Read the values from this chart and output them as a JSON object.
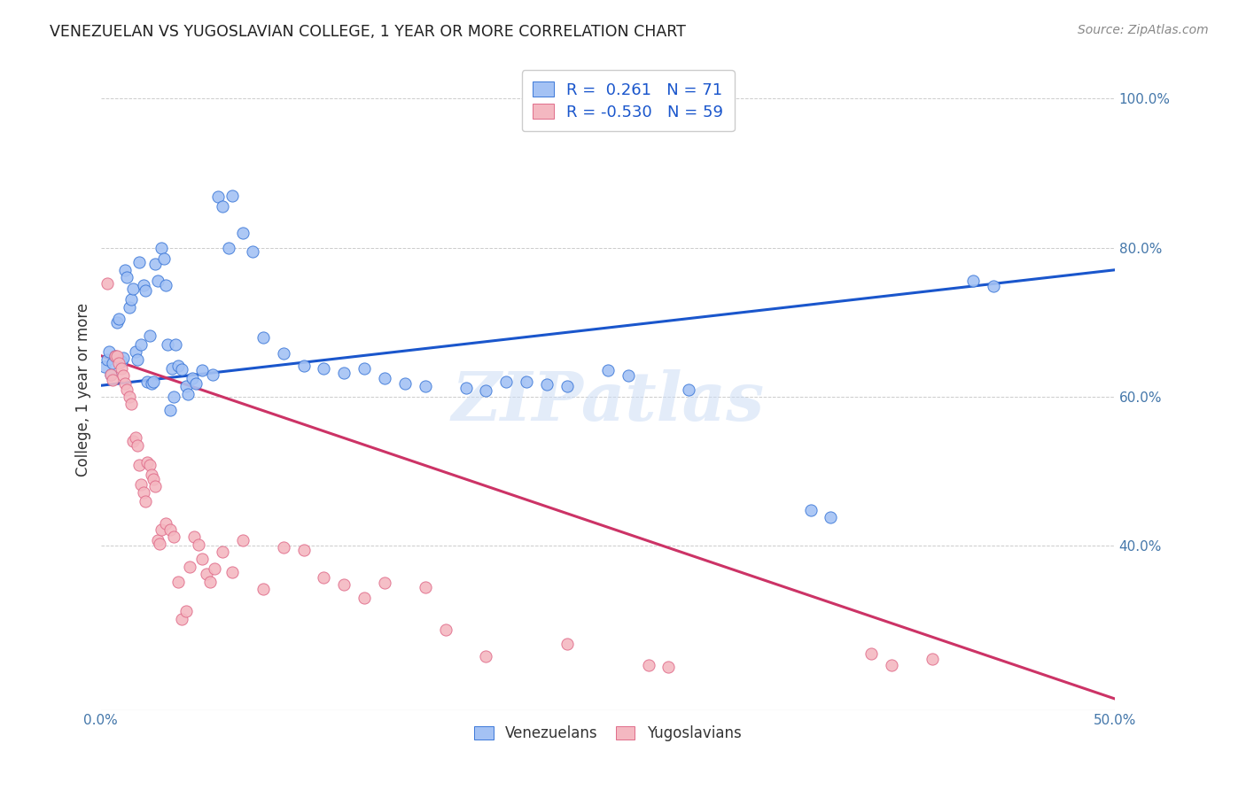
{
  "title": "VENEZUELAN VS YUGOSLAVIAN COLLEGE, 1 YEAR OR MORE CORRELATION CHART",
  "source": "Source: ZipAtlas.com",
  "xmin": 0.0,
  "xmax": 0.5,
  "ymin": 0.18,
  "ymax": 1.04,
  "watermark_text": "ZIPatlas",
  "legend_R_blue": "0.261",
  "legend_N_blue": "71",
  "legend_R_pink": "-0.530",
  "legend_N_pink": "59",
  "blue_fill": "#a4c2f4",
  "pink_fill": "#f4b8c1",
  "blue_edge": "#3c78d8",
  "pink_edge": "#e06c8a",
  "blue_line_color": "#1a56cc",
  "pink_line_color": "#cc3366",
  "yticks": [
    0.4,
    0.6,
    0.8,
    1.0
  ],
  "ytick_labels": [
    "40.0%",
    "60.0%",
    "80.0%",
    "100.0%"
  ],
  "xtick_vals": [
    0.0,
    0.5
  ],
  "xtick_labels": [
    "0.0%",
    "50.0%"
  ],
  "ylabel": "College, 1 year or more",
  "blue_line_x0": 0.0,
  "blue_line_x1": 0.5,
  "blue_line_y0": 0.615,
  "blue_line_y1": 0.77,
  "pink_line_x0": 0.0,
  "pink_line_x1": 0.5,
  "pink_line_y0": 0.655,
  "pink_line_y1": 0.195,
  "blue_scatter": [
    [
      0.002,
      0.64
    ],
    [
      0.003,
      0.65
    ],
    [
      0.004,
      0.66
    ],
    [
      0.005,
      0.63
    ],
    [
      0.006,
      0.645
    ],
    [
      0.007,
      0.655
    ],
    [
      0.008,
      0.7
    ],
    [
      0.009,
      0.705
    ],
    [
      0.01,
      0.648
    ],
    [
      0.011,
      0.652
    ],
    [
      0.012,
      0.77
    ],
    [
      0.013,
      0.76
    ],
    [
      0.014,
      0.72
    ],
    [
      0.015,
      0.73
    ],
    [
      0.016,
      0.745
    ],
    [
      0.017,
      0.66
    ],
    [
      0.018,
      0.65
    ],
    [
      0.019,
      0.78
    ],
    [
      0.02,
      0.67
    ],
    [
      0.021,
      0.75
    ],
    [
      0.022,
      0.742
    ],
    [
      0.023,
      0.62
    ],
    [
      0.024,
      0.682
    ],
    [
      0.025,
      0.618
    ],
    [
      0.026,
      0.62
    ],
    [
      0.027,
      0.778
    ],
    [
      0.028,
      0.755
    ],
    [
      0.03,
      0.8
    ],
    [
      0.031,
      0.785
    ],
    [
      0.032,
      0.75
    ],
    [
      0.033,
      0.67
    ],
    [
      0.034,
      0.582
    ],
    [
      0.035,
      0.638
    ],
    [
      0.036,
      0.6
    ],
    [
      0.037,
      0.67
    ],
    [
      0.038,
      0.642
    ],
    [
      0.04,
      0.637
    ],
    [
      0.042,
      0.614
    ],
    [
      0.043,
      0.603
    ],
    [
      0.045,
      0.625
    ],
    [
      0.047,
      0.618
    ],
    [
      0.05,
      0.635
    ],
    [
      0.055,
      0.63
    ],
    [
      0.058,
      0.868
    ],
    [
      0.06,
      0.855
    ],
    [
      0.063,
      0.8
    ],
    [
      0.065,
      0.87
    ],
    [
      0.07,
      0.82
    ],
    [
      0.075,
      0.795
    ],
    [
      0.08,
      0.68
    ],
    [
      0.09,
      0.658
    ],
    [
      0.1,
      0.642
    ],
    [
      0.11,
      0.638
    ],
    [
      0.12,
      0.632
    ],
    [
      0.13,
      0.638
    ],
    [
      0.14,
      0.625
    ],
    [
      0.15,
      0.618
    ],
    [
      0.16,
      0.614
    ],
    [
      0.18,
      0.612
    ],
    [
      0.19,
      0.608
    ],
    [
      0.2,
      0.62
    ],
    [
      0.21,
      0.62
    ],
    [
      0.22,
      0.616
    ],
    [
      0.23,
      0.614
    ],
    [
      0.25,
      0.636
    ],
    [
      0.26,
      0.628
    ],
    [
      0.29,
      0.61
    ],
    [
      0.35,
      0.448
    ],
    [
      0.36,
      0.438
    ],
    [
      0.43,
      0.756
    ],
    [
      0.44,
      0.748
    ]
  ],
  "pink_scatter": [
    [
      0.003,
      0.752
    ],
    [
      0.005,
      0.63
    ],
    [
      0.006,
      0.622
    ],
    [
      0.007,
      0.655
    ],
    [
      0.008,
      0.655
    ],
    [
      0.009,
      0.645
    ],
    [
      0.01,
      0.638
    ],
    [
      0.011,
      0.628
    ],
    [
      0.012,
      0.618
    ],
    [
      0.013,
      0.61
    ],
    [
      0.014,
      0.6
    ],
    [
      0.015,
      0.59
    ],
    [
      0.016,
      0.54
    ],
    [
      0.017,
      0.545
    ],
    [
      0.018,
      0.535
    ],
    [
      0.019,
      0.508
    ],
    [
      0.02,
      0.482
    ],
    [
      0.021,
      0.472
    ],
    [
      0.022,
      0.46
    ],
    [
      0.023,
      0.512
    ],
    [
      0.024,
      0.508
    ],
    [
      0.025,
      0.495
    ],
    [
      0.026,
      0.49
    ],
    [
      0.027,
      0.48
    ],
    [
      0.028,
      0.408
    ],
    [
      0.029,
      0.403
    ],
    [
      0.03,
      0.422
    ],
    [
      0.032,
      0.43
    ],
    [
      0.034,
      0.422
    ],
    [
      0.036,
      0.412
    ],
    [
      0.038,
      0.352
    ],
    [
      0.04,
      0.302
    ],
    [
      0.042,
      0.312
    ],
    [
      0.044,
      0.372
    ],
    [
      0.046,
      0.412
    ],
    [
      0.048,
      0.402
    ],
    [
      0.05,
      0.382
    ],
    [
      0.052,
      0.362
    ],
    [
      0.054,
      0.352
    ],
    [
      0.056,
      0.37
    ],
    [
      0.06,
      0.392
    ],
    [
      0.065,
      0.365
    ],
    [
      0.07,
      0.408
    ],
    [
      0.08,
      0.342
    ],
    [
      0.09,
      0.398
    ],
    [
      0.1,
      0.395
    ],
    [
      0.11,
      0.358
    ],
    [
      0.12,
      0.348
    ],
    [
      0.13,
      0.33
    ],
    [
      0.14,
      0.35
    ],
    [
      0.16,
      0.345
    ],
    [
      0.17,
      0.288
    ],
    [
      0.19,
      0.252
    ],
    [
      0.23,
      0.268
    ],
    [
      0.27,
      0.24
    ],
    [
      0.28,
      0.238
    ],
    [
      0.38,
      0.255
    ],
    [
      0.39,
      0.24
    ],
    [
      0.41,
      0.248
    ]
  ]
}
